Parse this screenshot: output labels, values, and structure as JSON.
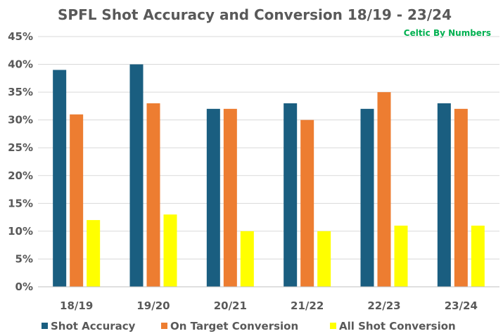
{
  "chart_data": {
    "type": "bar",
    "title": "SPFL Shot Accuracy and Conversion 18/19 - 23/24",
    "watermark": "Celtic By Numbers",
    "categories": [
      "18/19",
      "19/20",
      "20/21",
      "21/22",
      "22/23",
      "23/24"
    ],
    "series": [
      {
        "name": "Shot Accuracy",
        "color": "#1a5e80",
        "values": [
          39,
          40,
          32,
          33,
          32,
          33
        ]
      },
      {
        "name": "On Target Conversion",
        "color": "#ed7d31",
        "values": [
          31,
          33,
          32,
          30,
          35,
          32
        ]
      },
      {
        "name": "All Shot Conversion",
        "color": "#ffff00",
        "values": [
          12,
          13,
          10,
          10,
          11,
          11
        ]
      }
    ],
    "ylim": [
      0,
      45
    ],
    "yticks": [
      "0%",
      "5%",
      "10%",
      "15%",
      "20%",
      "25%",
      "30%",
      "35%",
      "40%",
      "45%"
    ],
    "grid": true,
    "legend_position": "bottom"
  }
}
